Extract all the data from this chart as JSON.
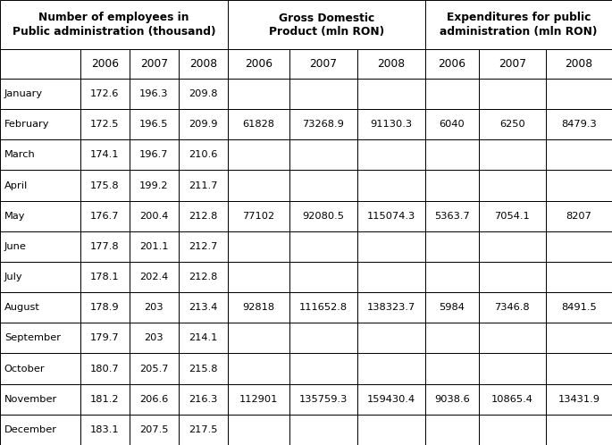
{
  "group1_header": "Number of employees in\nPublic administration (thousand)",
  "group2_header": "Gross Domestic\nProduct (mln RON)",
  "group3_header": "Expenditures for public\nadministration (mln RON)",
  "rows": [
    [
      "January",
      "172.6",
      "196.3",
      "209.8",
      "",
      "",
      "",
      "",
      "",
      ""
    ],
    [
      "February",
      "172.5",
      "196.5",
      "209.9",
      "61828",
      "73268.9",
      "91130.3",
      "6040",
      "6250",
      "8479.3"
    ],
    [
      "March",
      "174.1",
      "196.7",
      "210.6",
      "",
      "",
      "",
      "",
      "",
      ""
    ],
    [
      "April",
      "175.8",
      "199.2",
      "211.7",
      "",
      "",
      "",
      "",
      "",
      ""
    ],
    [
      "May",
      "176.7",
      "200.4",
      "212.8",
      "77102",
      "92080.5",
      "115074.3",
      "5363.7",
      "7054.1",
      "8207"
    ],
    [
      "June",
      "177.8",
      "201.1",
      "212.7",
      "",
      "",
      "",
      "",
      "",
      ""
    ],
    [
      "July",
      "178.1",
      "202.4",
      "212.8",
      "",
      "",
      "",
      "",
      "",
      ""
    ],
    [
      "August",
      "178.9",
      "203",
      "213.4",
      "92818",
      "111652.8",
      "138323.7",
      "5984",
      "7346.8",
      "8491.5"
    ],
    [
      "September",
      "179.7",
      "203",
      "214.1",
      "",
      "",
      "",
      "",
      "",
      ""
    ],
    [
      "October",
      "180.7",
      "205.7",
      "215.8",
      "",
      "",
      "",
      "",
      "",
      ""
    ],
    [
      "November",
      "181.2",
      "206.6",
      "216.3",
      "112901",
      "135759.3",
      "159430.4",
      "9038.6",
      "10865.4",
      "13431.9"
    ],
    [
      "December",
      "183.1",
      "207.5",
      "217.5",
      "",
      "",
      "",
      "",
      "",
      ""
    ]
  ],
  "col_widths_rel": [
    1.3,
    0.8,
    0.8,
    0.8,
    1.0,
    1.1,
    1.1,
    0.88,
    1.08,
    1.08
  ],
  "border_color": "#000000",
  "font_size": 8.2,
  "header_font_size": 8.8
}
